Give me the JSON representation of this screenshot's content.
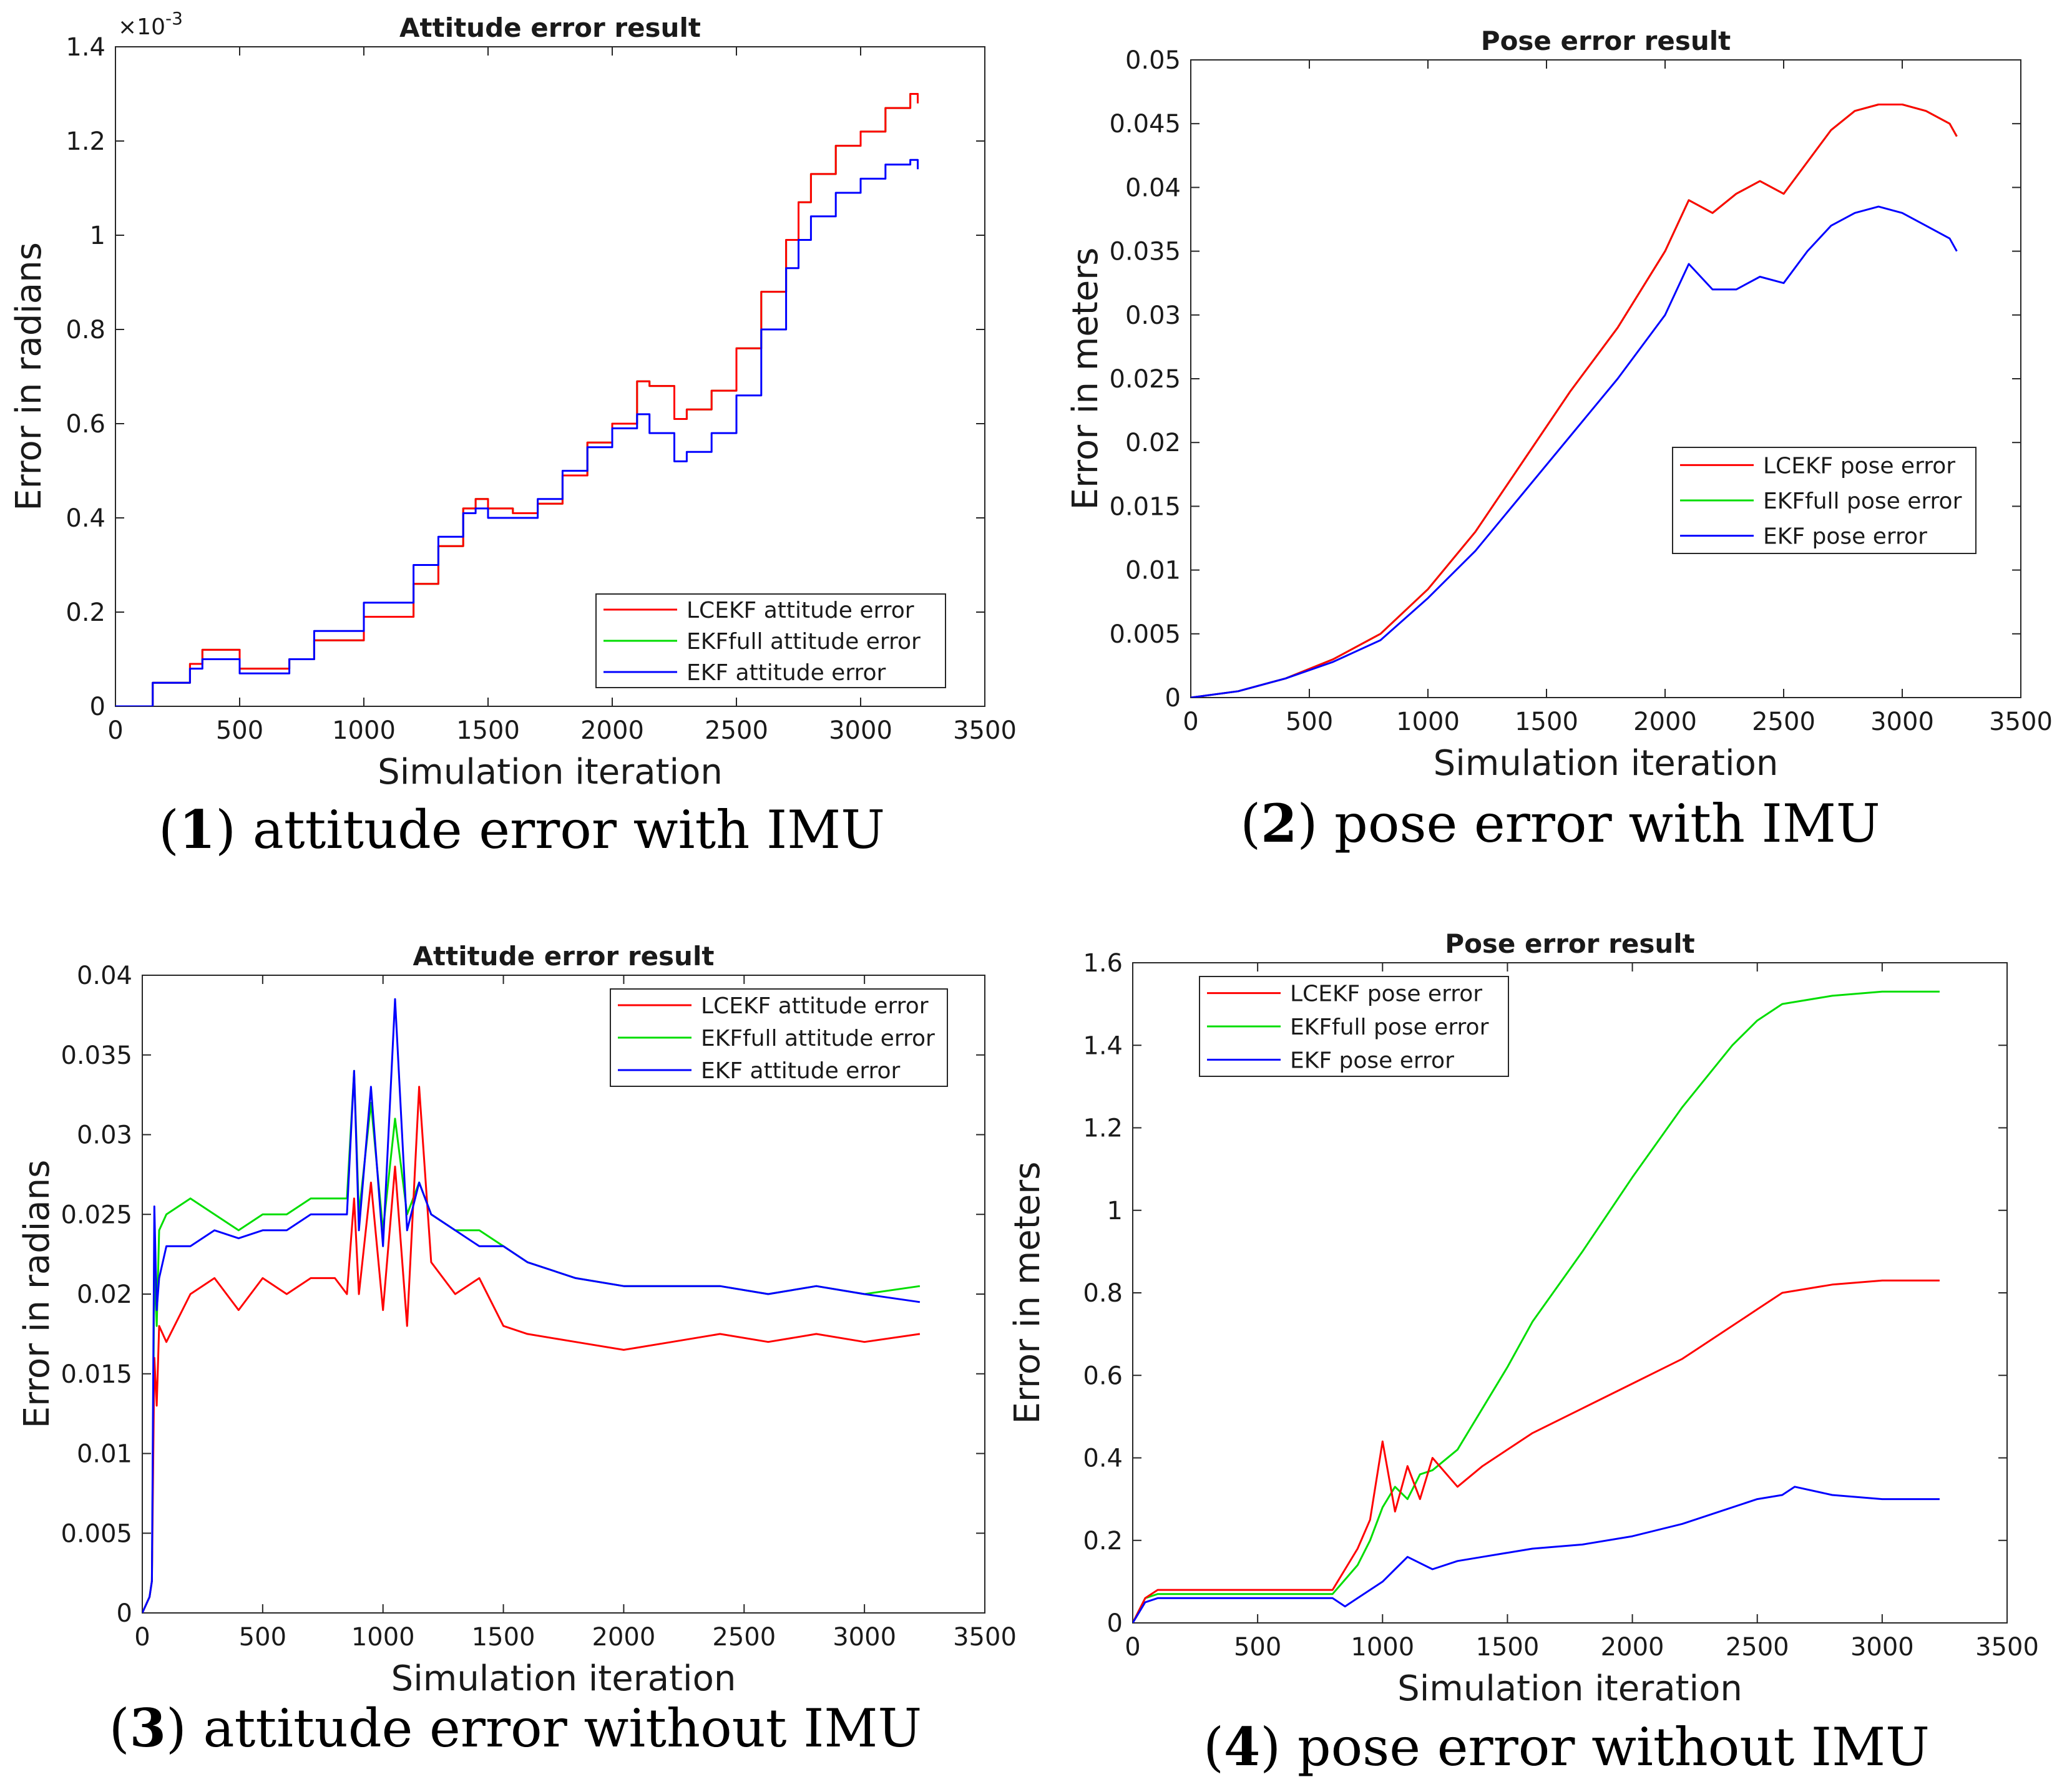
{
  "figure": {
    "captions": [
      {
        "num": "1",
        "text": "attitude error with IMU"
      },
      {
        "num": "2",
        "text": "pose error with IMU"
      },
      {
        "num": "3",
        "text": "attitude error without IMU"
      },
      {
        "num": "4",
        "text": "pose error without IMU"
      }
    ]
  },
  "colors": {
    "lcekf": "#ff0000",
    "ekffull": "#00dd00",
    "ekf": "#0000ff",
    "axis": "#262626"
  },
  "chart_data": [
    {
      "id": "c1",
      "type": "line",
      "title": "Attitude error result",
      "xlabel": "Simulation iteration",
      "ylabel": "Error in radians",
      "xlim": [
        0,
        3500
      ],
      "ylim": [
        0,
        1.4
      ],
      "xticks": [
        "0",
        "500",
        "1000",
        "1500",
        "2000",
        "2500",
        "3000",
        "3500"
      ],
      "yticks": [
        "0",
        "0.2",
        "0.4",
        "0.6",
        "0.8",
        "1",
        "1.2",
        "1.4"
      ],
      "yexponent": "×10",
      "yexponent_power": "-3",
      "legend": {
        "position": "bottom-right"
      },
      "step": true,
      "series": [
        {
          "name": "LCEKF attitude error",
          "color": "#ff0000",
          "x": [
            0,
            150,
            300,
            350,
            500,
            700,
            800,
            1000,
            1200,
            1300,
            1400,
            1450,
            1500,
            1600,
            1700,
            1800,
            1900,
            2000,
            2100,
            2150,
            2250,
            2300,
            2400,
            2500,
            2600,
            2700,
            2750,
            2800,
            2900,
            3000,
            3100,
            3200,
            3230
          ],
          "y": [
            0,
            0.05,
            0.09,
            0.12,
            0.08,
            0.1,
            0.14,
            0.19,
            0.26,
            0.34,
            0.42,
            0.44,
            0.42,
            0.41,
            0.43,
            0.49,
            0.56,
            0.6,
            0.69,
            0.68,
            0.61,
            0.63,
            0.67,
            0.76,
            0.88,
            0.99,
            1.07,
            1.13,
            1.19,
            1.22,
            1.27,
            1.3,
            1.28
          ]
        },
        {
          "name": "EKFfull attitude error",
          "color": "#00dd00",
          "x": [
            0,
            150,
            300,
            350,
            500,
            700,
            800,
            1000,
            1200,
            1300,
            1400,
            1450,
            1500,
            1600,
            1700,
            1800,
            1900,
            2000,
            2100,
            2150,
            2250,
            2300,
            2400,
            2500,
            2600,
            2700,
            2750,
            2800,
            2900,
            3000,
            3100,
            3200,
            3230
          ],
          "y": [
            0,
            0.05,
            0.09,
            0.12,
            0.08,
            0.1,
            0.14,
            0.19,
            0.26,
            0.34,
            0.42,
            0.44,
            0.42,
            0.41,
            0.43,
            0.49,
            0.56,
            0.6,
            0.69,
            0.68,
            0.61,
            0.63,
            0.67,
            0.76,
            0.88,
            0.99,
            1.07,
            1.13,
            1.19,
            1.22,
            1.27,
            1.3,
            1.28
          ]
        },
        {
          "name": "EKF attitude error",
          "color": "#0000ff",
          "x": [
            0,
            150,
            300,
            350,
            500,
            700,
            800,
            1000,
            1200,
            1300,
            1400,
            1450,
            1500,
            1600,
            1700,
            1800,
            1900,
            2000,
            2100,
            2150,
            2250,
            2300,
            2400,
            2500,
            2600,
            2700,
            2750,
            2800,
            2900,
            3000,
            3100,
            3200,
            3230
          ],
          "y": [
            0,
            0.05,
            0.08,
            0.1,
            0.07,
            0.1,
            0.16,
            0.22,
            0.3,
            0.36,
            0.41,
            0.42,
            0.4,
            0.4,
            0.44,
            0.5,
            0.55,
            0.59,
            0.62,
            0.58,
            0.52,
            0.54,
            0.58,
            0.66,
            0.8,
            0.93,
            0.99,
            1.04,
            1.09,
            1.12,
            1.15,
            1.16,
            1.14
          ]
        }
      ]
    },
    {
      "id": "c2",
      "type": "line",
      "title": "Pose error result",
      "xlabel": "Simulation iteration",
      "ylabel": "Error in meters",
      "xlim": [
        0,
        3500
      ],
      "ylim": [
        0,
        0.05
      ],
      "xticks": [
        "0",
        "500",
        "1000",
        "1500",
        "2000",
        "2500",
        "3000",
        "3500"
      ],
      "yticks": [
        "0",
        "0.005",
        "0.01",
        "0.015",
        "0.02",
        "0.025",
        "0.03",
        "0.035",
        "0.04",
        "0.045",
        "0.05"
      ],
      "legend": {
        "position": "center-right"
      },
      "series": [
        {
          "name": "LCEKF pose error",
          "color": "#ff0000",
          "x": [
            0,
            200,
            400,
            600,
            800,
            1000,
            1200,
            1400,
            1600,
            1800,
            2000,
            2100,
            2200,
            2300,
            2400,
            2500,
            2600,
            2700,
            2800,
            2900,
            3000,
            3100,
            3200,
            3230
          ],
          "y": [
            0,
            0.0005,
            0.0015,
            0.003,
            0.005,
            0.0085,
            0.013,
            0.0185,
            0.024,
            0.029,
            0.035,
            0.039,
            0.038,
            0.0395,
            0.0405,
            0.0395,
            0.042,
            0.0445,
            0.046,
            0.0465,
            0.0465,
            0.046,
            0.045,
            0.044
          ]
        },
        {
          "name": "EKFfull pose error",
          "color": "#00dd00",
          "x": [
            0,
            200,
            400,
            600,
            800,
            1000,
            1200,
            1400,
            1600,
            1800,
            2000,
            2100,
            2200,
            2300,
            2400,
            2500,
            2600,
            2700,
            2800,
            2900,
            3000,
            3100,
            3200,
            3230
          ],
          "y": [
            0,
            0.0005,
            0.0015,
            0.003,
            0.005,
            0.0085,
            0.013,
            0.0185,
            0.024,
            0.029,
            0.035,
            0.039,
            0.038,
            0.0395,
            0.0405,
            0.0395,
            0.042,
            0.0445,
            0.046,
            0.0465,
            0.0465,
            0.046,
            0.045,
            0.044
          ]
        },
        {
          "name": "EKF pose error",
          "color": "#0000ff",
          "x": [
            0,
            200,
            400,
            600,
            800,
            1000,
            1200,
            1400,
            1600,
            1800,
            2000,
            2100,
            2200,
            2300,
            2400,
            2500,
            2600,
            2700,
            2800,
            2900,
            3000,
            3100,
            3200,
            3230
          ],
          "y": [
            0,
            0.0005,
            0.0015,
            0.0028,
            0.0045,
            0.0078,
            0.0115,
            0.016,
            0.0205,
            0.025,
            0.03,
            0.034,
            0.032,
            0.032,
            0.033,
            0.0325,
            0.035,
            0.037,
            0.038,
            0.0385,
            0.038,
            0.037,
            0.036,
            0.035
          ]
        }
      ]
    },
    {
      "id": "c3",
      "type": "line",
      "title": "Attitude error result",
      "xlabel": "Simulation iteration",
      "ylabel": "Error in radians",
      "xlim": [
        0,
        3500
      ],
      "ylim": [
        0,
        0.04
      ],
      "xticks": [
        "0",
        "500",
        "1000",
        "1500",
        "2000",
        "2500",
        "3000",
        "3500"
      ],
      "yticks": [
        "0",
        "0.005",
        "0.01",
        "0.015",
        "0.02",
        "0.025",
        "0.03",
        "0.035",
        "0.04"
      ],
      "legend": {
        "position": "top-right"
      },
      "series": [
        {
          "name": "LCEKF attitude error",
          "color": "#ff0000",
          "x": [
            0,
            30,
            40,
            50,
            60,
            70,
            100,
            200,
            300,
            400,
            500,
            600,
            700,
            800,
            850,
            880,
            900,
            950,
            1000,
            1050,
            1100,
            1150,
            1200,
            1300,
            1400,
            1500,
            1600,
            1800,
            2000,
            2200,
            2400,
            2600,
            2800,
            3000,
            3230
          ],
          "y": [
            0,
            0.001,
            0.002,
            0.016,
            0.013,
            0.018,
            0.017,
            0.02,
            0.021,
            0.019,
            0.021,
            0.02,
            0.021,
            0.021,
            0.02,
            0.026,
            0.02,
            0.027,
            0.019,
            0.028,
            0.018,
            0.033,
            0.022,
            0.02,
            0.021,
            0.018,
            0.0175,
            0.017,
            0.0165,
            0.017,
            0.0175,
            0.017,
            0.0175,
            0.017,
            0.0175
          ]
        },
        {
          "name": "EKFfull attitude error",
          "color": "#00dd00",
          "x": [
            0,
            30,
            40,
            50,
            60,
            70,
            100,
            200,
            300,
            400,
            500,
            600,
            700,
            800,
            850,
            880,
            900,
            950,
            1000,
            1050,
            1100,
            1150,
            1200,
            1300,
            1400,
            1500,
            1600,
            1800,
            2000,
            2200,
            2400,
            2600,
            2800,
            3000,
            3230
          ],
          "y": [
            0,
            0.001,
            0.002,
            0.022,
            0.018,
            0.024,
            0.025,
            0.026,
            0.025,
            0.024,
            0.025,
            0.025,
            0.026,
            0.026,
            0.026,
            0.034,
            0.025,
            0.032,
            0.024,
            0.031,
            0.025,
            0.027,
            0.025,
            0.024,
            0.024,
            0.023,
            0.022,
            0.021,
            0.0205,
            0.0205,
            0.0205,
            0.02,
            0.0205,
            0.02,
            0.0205
          ]
        },
        {
          "name": "EKF attitude error",
          "color": "#0000ff",
          "x": [
            0,
            30,
            40,
            50,
            60,
            70,
            100,
            200,
            300,
            400,
            500,
            600,
            700,
            800,
            850,
            880,
            900,
            950,
            1000,
            1050,
            1100,
            1150,
            1200,
            1300,
            1400,
            1500,
            1600,
            1800,
            2000,
            2200,
            2400,
            2600,
            2800,
            3000,
            3230
          ],
          "y": [
            0,
            0.001,
            0.002,
            0.0255,
            0.019,
            0.021,
            0.023,
            0.023,
            0.024,
            0.0235,
            0.024,
            0.024,
            0.025,
            0.025,
            0.025,
            0.034,
            0.024,
            0.033,
            0.023,
            0.0385,
            0.024,
            0.027,
            0.025,
            0.024,
            0.023,
            0.023,
            0.022,
            0.021,
            0.0205,
            0.0205,
            0.0205,
            0.02,
            0.0205,
            0.02,
            0.0195
          ]
        }
      ]
    },
    {
      "id": "c4",
      "type": "line",
      "title": "Pose error result",
      "xlabel": "Simulation iteration",
      "ylabel": "Error in meters",
      "xlim": [
        0,
        3500
      ],
      "ylim": [
        0,
        1.6
      ],
      "xticks": [
        "0",
        "500",
        "1000",
        "1500",
        "2000",
        "2500",
        "3000",
        "3500"
      ],
      "yticks": [
        "0",
        "0.2",
        "0.4",
        "0.6",
        "0.8",
        "1",
        "1.2",
        "1.4",
        "1.6"
      ],
      "legend": {
        "position": "top-left"
      },
      "series": [
        {
          "name": "LCEKF pose error",
          "color": "#ff0000",
          "x": [
            0,
            50,
            100,
            200,
            400,
            600,
            800,
            900,
            950,
            1000,
            1050,
            1100,
            1150,
            1200,
            1300,
            1400,
            1500,
            1600,
            1800,
            2000,
            2200,
            2400,
            2500,
            2600,
            2800,
            3000,
            3230
          ],
          "y": [
            0,
            0.06,
            0.08,
            0.08,
            0.08,
            0.08,
            0.08,
            0.18,
            0.25,
            0.44,
            0.27,
            0.38,
            0.3,
            0.4,
            0.33,
            0.38,
            0.42,
            0.46,
            0.52,
            0.58,
            0.64,
            0.72,
            0.76,
            0.8,
            0.82,
            0.83,
            0.83
          ]
        },
        {
          "name": "EKFfull pose error",
          "color": "#00dd00",
          "x": [
            0,
            50,
            100,
            200,
            400,
            600,
            800,
            900,
            950,
            1000,
            1050,
            1100,
            1150,
            1200,
            1300,
            1400,
            1500,
            1600,
            1800,
            2000,
            2200,
            2400,
            2500,
            2600,
            2800,
            3000,
            3230
          ],
          "y": [
            0,
            0.06,
            0.07,
            0.07,
            0.07,
            0.07,
            0.07,
            0.14,
            0.2,
            0.28,
            0.33,
            0.3,
            0.36,
            0.37,
            0.42,
            0.52,
            0.62,
            0.73,
            0.9,
            1.08,
            1.25,
            1.4,
            1.46,
            1.5,
            1.52,
            1.53,
            1.53
          ]
        },
        {
          "name": "EKF pose error",
          "color": "#0000ff",
          "x": [
            0,
            50,
            100,
            200,
            400,
            600,
            800,
            850,
            900,
            1000,
            1050,
            1100,
            1200,
            1300,
            1400,
            1500,
            1600,
            1800,
            2000,
            2200,
            2400,
            2500,
            2600,
            2650,
            2800,
            3000,
            3230
          ],
          "y": [
            0,
            0.05,
            0.06,
            0.06,
            0.06,
            0.06,
            0.06,
            0.04,
            0.06,
            0.1,
            0.13,
            0.16,
            0.13,
            0.15,
            0.16,
            0.17,
            0.18,
            0.19,
            0.21,
            0.24,
            0.28,
            0.3,
            0.31,
            0.33,
            0.31,
            0.3,
            0.3
          ]
        }
      ]
    }
  ]
}
